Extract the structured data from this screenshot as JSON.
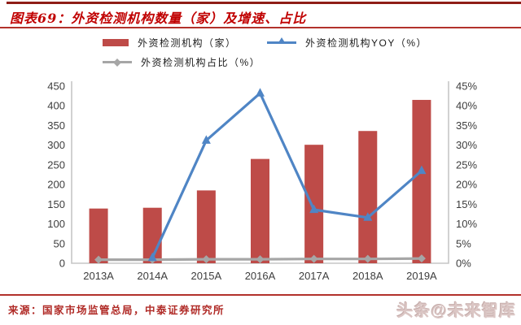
{
  "figure": {
    "title": "图表69：外资检测机构数量（家）及增速、占比",
    "source": "来源：国家市场监管总局，中泰证券研究所",
    "watermark": "头条@未来智库"
  },
  "colors": {
    "title_red": "#c00000",
    "rule_red": "#b2312b",
    "bar_red": "#be4b48",
    "line_blue": "#4f85c5",
    "line_gray": "#a6a6a6",
    "axis_gray": "#c6c6c6",
    "tick_text": "#3d3d3d"
  },
  "legend": [
    {
      "label": "外资检测机构（家）",
      "marker": "bar-swatch",
      "color": "#be4b48"
    },
    {
      "label": "外资检测机构YOY（%）",
      "marker": "triangle-line",
      "color": "#4f85c5"
    },
    {
      "label": "外资检测机构占比（%）",
      "marker": "diamond-line",
      "color": "#a6a6a6"
    }
  ],
  "chart_data": {
    "type": "bar",
    "title": "外资检测机构数量（家）及增速、占比",
    "categories": [
      "2013A",
      "2014A",
      "2015A",
      "2016A",
      "2017A",
      "2018A",
      "2019A"
    ],
    "series": [
      {
        "name": "外资检测机构（家）",
        "type": "bar",
        "axis": "left",
        "color": "#be4b48",
        "values": [
          139,
          141,
          185,
          265,
          301,
          336,
          415
        ]
      },
      {
        "name": "外资检测机构YOY（%）",
        "type": "line",
        "axis": "right",
        "color": "#4f85c5",
        "marker": "triangle",
        "values": [
          null,
          1.4,
          31.2,
          43.2,
          13.6,
          11.6,
          23.5
        ]
      },
      {
        "name": "外资检测机构占比（%）",
        "type": "line",
        "axis": "right",
        "color": "#a6a6a6",
        "marker": "diamond",
        "values": [
          0.9,
          0.9,
          1.0,
          1.0,
          1.1,
          1.1,
          1.2
        ]
      }
    ],
    "left_axis": {
      "min": 0,
      "max": 450,
      "step": 50,
      "tick_labels": [
        "0",
        "50",
        "100",
        "150",
        "200",
        "250",
        "300",
        "350",
        "400",
        "450"
      ]
    },
    "right_axis": {
      "min": 0,
      "max": 45,
      "step": 5,
      "tick_labels": [
        "0%",
        "5%",
        "10%",
        "15%",
        "20%",
        "25%",
        "30%",
        "35%",
        "40%",
        "45%"
      ]
    },
    "grid": false,
    "legend_position": "top",
    "xlabel": "",
    "ylabel": ""
  }
}
